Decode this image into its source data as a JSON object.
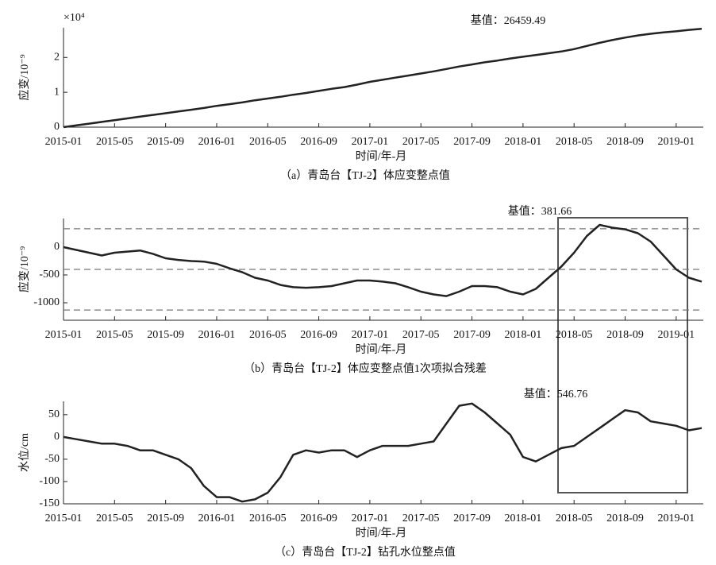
{
  "chart_data": [
    {
      "type": "line",
      "multiplier": "×10⁴",
      "annotation": "基值：26459.49",
      "ylabel": "应变/10⁻⁹",
      "xlabel": "时间/年-月",
      "caption": "（a）青岛台【TJ-2】体应变整点值",
      "color": "#222222",
      "x": [
        "2015-01",
        "2015-02",
        "2015-03",
        "2015-04",
        "2015-05",
        "2015-06",
        "2015-07",
        "2015-08",
        "2015-09",
        "2015-10",
        "2015-11",
        "2015-12",
        "2016-01",
        "2016-02",
        "2016-03",
        "2016-04",
        "2016-05",
        "2016-06",
        "2016-07",
        "2016-08",
        "2016-09",
        "2016-10",
        "2016-11",
        "2016-12",
        "2017-01",
        "2017-02",
        "2017-03",
        "2017-04",
        "2017-05",
        "2017-06",
        "2017-07",
        "2017-08",
        "2017-09",
        "2017-10",
        "2017-11",
        "2017-12",
        "2018-01",
        "2018-02",
        "2018-03",
        "2018-04",
        "2018-05",
        "2018-06",
        "2018-07",
        "2018-08",
        "2018-09",
        "2018-10",
        "2018-11",
        "2018-12",
        "2019-01",
        "2019-02",
        "2019-03"
      ],
      "values": [
        0,
        0.05,
        0.1,
        0.15,
        0.2,
        0.25,
        0.3,
        0.35,
        0.4,
        0.45,
        0.5,
        0.55,
        0.61,
        0.66,
        0.71,
        0.77,
        0.82,
        0.87,
        0.93,
        0.98,
        1.04,
        1.1,
        1.15,
        1.22,
        1.3,
        1.36,
        1.42,
        1.48,
        1.54,
        1.6,
        1.67,
        1.74,
        1.8,
        1.86,
        1.91,
        1.97,
        2.02,
        2.07,
        2.12,
        2.17,
        2.24,
        2.33,
        2.42,
        2.5,
        2.57,
        2.63,
        2.68,
        2.72,
        2.75,
        2.79,
        2.82
      ],
      "ylim": [
        0,
        2.85
      ],
      "yticks": [
        0,
        1,
        2
      ],
      "xticks": [
        "2015-01",
        "2015-05",
        "2015-09",
        "2016-01",
        "2016-05",
        "2016-09",
        "2017-01",
        "2017-05",
        "2017-09",
        "2018-01",
        "2018-05",
        "2018-09",
        "2019-01"
      ]
    },
    {
      "type": "line",
      "annotation": "基值：381.66",
      "ylabel": "应变/10⁻⁹",
      "xlabel": "时间/年-月",
      "caption": "（b）青岛台【TJ-2】体应变整点值1次项拟合残差",
      "color": "#222222",
      "x": [
        "2015-01",
        "2015-02",
        "2015-03",
        "2015-04",
        "2015-05",
        "2015-06",
        "2015-07",
        "2015-08",
        "2015-09",
        "2015-10",
        "2015-11",
        "2015-12",
        "2016-01",
        "2016-02",
        "2016-03",
        "2016-04",
        "2016-05",
        "2016-06",
        "2016-07",
        "2016-08",
        "2016-09",
        "2016-10",
        "2016-11",
        "2016-12",
        "2017-01",
        "2017-02",
        "2017-03",
        "2017-04",
        "2017-05",
        "2017-06",
        "2017-07",
        "2017-08",
        "2017-09",
        "2017-10",
        "2017-11",
        "2017-12",
        "2018-01",
        "2018-02",
        "2018-03",
        "2018-04",
        "2018-05",
        "2018-06",
        "2018-07",
        "2018-08",
        "2018-09",
        "2018-10",
        "2018-11",
        "2018-12",
        "2019-01",
        "2019-02",
        "2019-03"
      ],
      "values": [
        0,
        -50,
        -100,
        -150,
        -100,
        -80,
        -60,
        -120,
        -200,
        -230,
        -250,
        -260,
        -300,
        -380,
        -450,
        -550,
        -600,
        -680,
        -720,
        -730,
        -720,
        -700,
        -650,
        -600,
        -600,
        -620,
        -650,
        -720,
        -800,
        -850,
        -880,
        -800,
        -700,
        -700,
        -720,
        -800,
        -850,
        -750,
        -550,
        -350,
        -100,
        200,
        400,
        350,
        320,
        250,
        100,
        -150,
        -400,
        -550,
        -620
      ],
      "ylim": [
        -1314,
        514
      ],
      "yticks": [
        -1000,
        -500,
        0
      ],
      "reference_lines": [
        330,
        -400,
        -1130
      ],
      "xticks": [
        "2015-01",
        "2015-05",
        "2015-09",
        "2016-01",
        "2016-05",
        "2016-09",
        "2017-01",
        "2017-05",
        "2017-09",
        "2018-01",
        "2018-05",
        "2018-09",
        "2019-01"
      ]
    },
    {
      "type": "line",
      "annotation": "基值：546.76",
      "ylabel": "水位/cm",
      "xlabel": "时间/年-月",
      "caption": "（c）青岛台【TJ-2】钻孔水位整点值",
      "color": "#222222",
      "x": [
        "2015-01",
        "2015-02",
        "2015-03",
        "2015-04",
        "2015-05",
        "2015-06",
        "2015-07",
        "2015-08",
        "2015-09",
        "2015-10",
        "2015-11",
        "2015-12",
        "2016-01",
        "2016-02",
        "2016-03",
        "2016-04",
        "2016-05",
        "2016-06",
        "2016-07",
        "2016-08",
        "2016-09",
        "2016-10",
        "2016-11",
        "2016-12",
        "2017-01",
        "2017-02",
        "2017-03",
        "2017-04",
        "2017-05",
        "2017-06",
        "2017-07",
        "2017-08",
        "2017-09",
        "2017-10",
        "2017-11",
        "2017-12",
        "2018-01",
        "2018-02",
        "2018-03",
        "2018-04",
        "2018-05",
        "2018-06",
        "2018-07",
        "2018-08",
        "2018-09",
        "2018-10",
        "2018-11",
        "2018-12",
        "2019-01",
        "2019-02",
        "2019-03"
      ],
      "values": [
        0,
        -5,
        -10,
        -15,
        -15,
        -20,
        -30,
        -30,
        -40,
        -50,
        -70,
        -110,
        -135,
        -135,
        -145,
        -140,
        -125,
        -90,
        -40,
        -30,
        -35,
        -30,
        -30,
        -45,
        -30,
        -20,
        -20,
        -20,
        -15,
        -10,
        30,
        70,
        75,
        55,
        30,
        5,
        -45,
        -55,
        -40,
        -25,
        -20,
        0,
        20,
        40,
        60,
        55,
        35,
        30,
        25,
        15,
        20
      ],
      "ylim": [
        -150,
        80
      ],
      "yticks": [
        -150,
        -100,
        -50,
        0,
        50
      ],
      "xticks": [
        "2015-01",
        "2015-05",
        "2015-09",
        "2016-01",
        "2016-05",
        "2016-09",
        "2017-01",
        "2017-05",
        "2017-09",
        "2018-01",
        "2018-05",
        "2018-09",
        "2019-01"
      ]
    }
  ]
}
